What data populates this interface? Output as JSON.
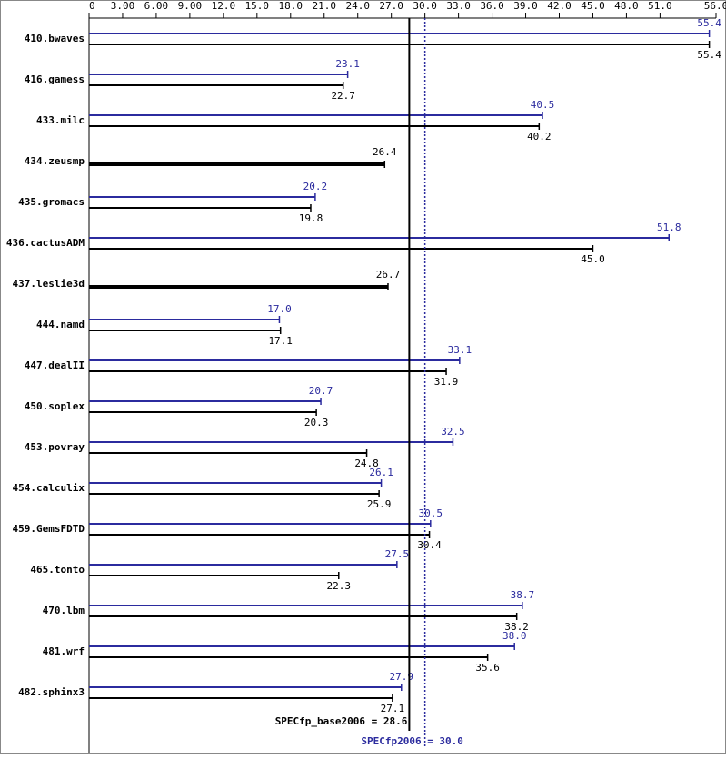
{
  "chart_data": {
    "type": "hbar",
    "categories": [
      "410.bwaves",
      "416.gamess",
      "433.milc",
      "434.zeusmp",
      "435.gromacs",
      "436.cactusADM",
      "437.leslie3d",
      "444.namd",
      "447.dealII",
      "450.soplex",
      "453.povray",
      "454.calculix",
      "459.GemsFDTD",
      "465.tonto",
      "470.lbm",
      "481.wrf",
      "482.sphinx3"
    ],
    "series": [
      {
        "color": "#000000",
        "values": [
          55.4,
          22.7,
          40.2,
          26.4,
          19.8,
          45.0,
          26.7,
          17.1,
          31.9,
          20.3,
          24.8,
          25.9,
          30.4,
          22.3,
          38.2,
          35.6,
          27.1
        ],
        "value_labels": [
          "55.4",
          "22.7",
          "40.2",
          "26.4",
          "19.8",
          "45.0",
          "26.7",
          "17.1",
          "31.9",
          "20.3",
          "24.8",
          "25.9",
          "30.4",
          "22.3",
          "38.2",
          "35.6",
          "27.1"
        ]
      },
      {
        "color": "#2b2b9e",
        "values": [
          55.4,
          23.1,
          40.5,
          null,
          20.2,
          51.8,
          null,
          17.0,
          33.1,
          20.7,
          32.5,
          26.1,
          30.5,
          27.5,
          38.7,
          38.0,
          27.9
        ],
        "value_labels": [
          "55.4",
          "23.1",
          "40.5",
          null,
          "20.2",
          "51.8",
          null,
          "17.0",
          "33.1",
          "20.7",
          "32.5",
          "26.1",
          "30.5",
          "27.5",
          "38.7",
          "38.0",
          "27.9"
        ]
      }
    ],
    "xlim": [
      0,
      56
    ],
    "xticks": [
      0,
      {
        "value": 3,
        "label": "3.00"
      },
      {
        "value": 6,
        "label": "6.00"
      },
      {
        "value": 9,
        "label": "9.00"
      },
      {
        "value": 12,
        "label": "12.0"
      },
      {
        "value": 15,
        "label": "15.0"
      },
      {
        "value": 18,
        "label": "18.0"
      },
      {
        "value": 21,
        "label": "21.0"
      },
      {
        "value": 24,
        "label": "24.0"
      },
      {
        "value": 27,
        "label": "27.0"
      },
      {
        "value": 30,
        "label": "30.0"
      },
      {
        "value": 33,
        "label": "33.0"
      },
      {
        "value": 36,
        "label": "36.0"
      },
      {
        "value": 39,
        "label": "39.0"
      },
      {
        "value": 42,
        "label": "42.0"
      },
      {
        "value": 45,
        "label": "45.0"
      },
      {
        "value": 48,
        "label": "48.0"
      },
      {
        "value": 51,
        "label": "51.0"
      },
      {
        "value": 56,
        "label": "56.0"
      }
    ],
    "reference_lines": [
      {
        "label": "SPECfp_base2006 = 28.6",
        "value": 28.6,
        "color": "#000000",
        "dotted": false
      },
      {
        "label": "SPECfp2006 = 30.0",
        "value": 30.0,
        "color": "#2b2b9e",
        "dotted": true
      }
    ]
  }
}
